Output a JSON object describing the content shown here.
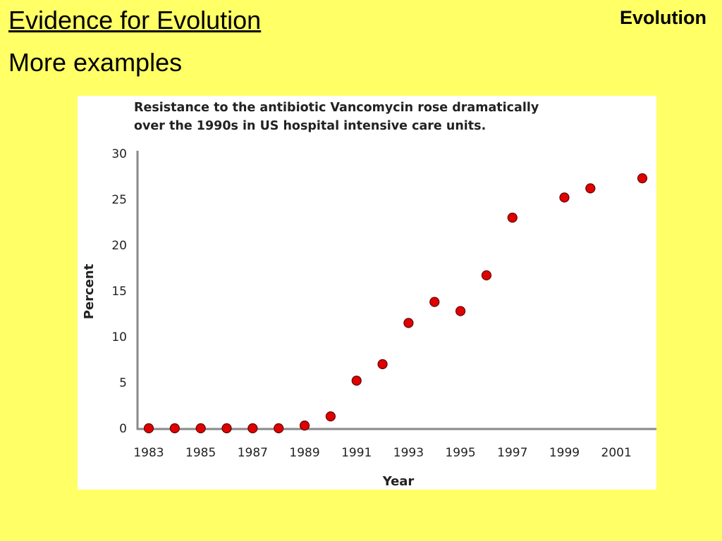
{
  "slide": {
    "title": "Evidence for Evolution",
    "subtitle": "More examples",
    "corner_label": "Evolution"
  },
  "colors": {
    "background": "#FFFF66",
    "marker_fill": "#E00000",
    "marker_stroke": "#600000",
    "axis": "#888888"
  },
  "chart_data": {
    "type": "scatter",
    "title_lines": [
      "Resistance to the antibiotic Vancomycin rose dramatically",
      "over the 1990s in US hospital intensive care units."
    ],
    "xlabel": "Year",
    "ylabel": "Percent",
    "xlim": [
      1983,
      2002
    ],
    "ylim": [
      0,
      30
    ],
    "x_ticks": [
      1983,
      1985,
      1987,
      1989,
      1991,
      1993,
      1995,
      1997,
      1999,
      2001
    ],
    "y_ticks": [
      0,
      5,
      10,
      15,
      20,
      25,
      30
    ],
    "grid": false,
    "legend": "none",
    "series": [
      {
        "points": [
          {
            "x": 1983,
            "y": 0.0
          },
          {
            "x": 1984,
            "y": 0.0
          },
          {
            "x": 1985,
            "y": 0.0
          },
          {
            "x": 1986,
            "y": 0.0
          },
          {
            "x": 1987,
            "y": 0.0
          },
          {
            "x": 1988,
            "y": 0.0
          },
          {
            "x": 1989,
            "y": 0.3
          },
          {
            "x": 1990,
            "y": 1.3
          },
          {
            "x": 1991,
            "y": 5.2
          },
          {
            "x": 1992,
            "y": 7.0
          },
          {
            "x": 1993,
            "y": 11.5
          },
          {
            "x": 1994,
            "y": 13.8
          },
          {
            "x": 1995,
            "y": 12.8
          },
          {
            "x": 1996,
            "y": 16.7
          },
          {
            "x": 1997,
            "y": 23.0
          },
          {
            "x": 1999,
            "y": 25.2
          },
          {
            "x": 2000,
            "y": 26.2
          },
          {
            "x": 2002,
            "y": 27.3
          }
        ]
      }
    ]
  }
}
